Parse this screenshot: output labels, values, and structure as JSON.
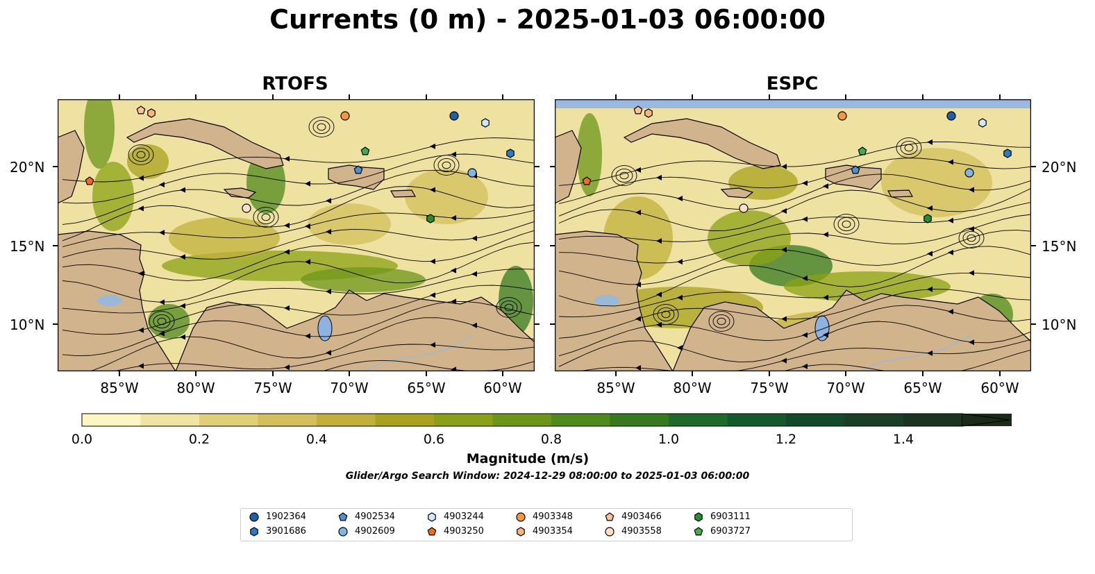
{
  "title": "Currents (0 m) - 2025-01-03 06:00:00",
  "panels": [
    {
      "title": "RTOFS"
    },
    {
      "title": "ESPC"
    }
  ],
  "lat_ticks": [
    "20°N",
    "15°N",
    "10°N"
  ],
  "lon_ticks": [
    "85°W",
    "80°W",
    "75°W",
    "70°W",
    "65°W",
    "60°W"
  ],
  "colorbar": {
    "label": "Magnitude (m/s)",
    "ticks": [
      "0.0",
      "0.2",
      "0.4",
      "0.6",
      "0.8",
      "1.0",
      "1.2",
      "1.4"
    ],
    "colors": [
      "#fdf6c3",
      "#f1e3a0",
      "#e1cf77",
      "#d3bf5c",
      "#c2b03c",
      "#a9a21e",
      "#8ba115",
      "#6d9619",
      "#4f8a1c",
      "#357a1f",
      "#1f6a2a",
      "#13592c",
      "#144a2b",
      "#1a3f27",
      "#1c3322",
      "#1c2a1a"
    ]
  },
  "search_window": "Glider/Argo Search Window: 2024-12-29 08:00:00 to 2025-01-03 06:00:00",
  "legend": [
    {
      "id": "1902364",
      "marker": "circle",
      "color": "#1f5fa6"
    },
    {
      "id": "3901686",
      "marker": "hexagon",
      "color": "#2b7bc0"
    },
    {
      "id": "4902534",
      "marker": "pentagon",
      "color": "#4d91cf"
    },
    {
      "id": "4902609",
      "marker": "circle",
      "color": "#7fb6e6"
    },
    {
      "id": "4903244",
      "marker": "hexagon",
      "color": "#cfe8fb"
    },
    {
      "id": "4903250",
      "marker": "pentagon",
      "color": "#ef6f14"
    },
    {
      "id": "4903348",
      "marker": "circle",
      "color": "#f5973d"
    },
    {
      "id": "4903354",
      "marker": "hexagon",
      "color": "#f8b877"
    },
    {
      "id": "4903466",
      "marker": "pentagon",
      "color": "#fbc496"
    },
    {
      "id": "4903558",
      "marker": "circle",
      "color": "#fde0c8"
    },
    {
      "id": "6903111",
      "marker": "hexagon",
      "color": "#248f2d"
    },
    {
      "id": "6903727",
      "marker": "pentagon",
      "color": "#3fae46"
    }
  ]
}
